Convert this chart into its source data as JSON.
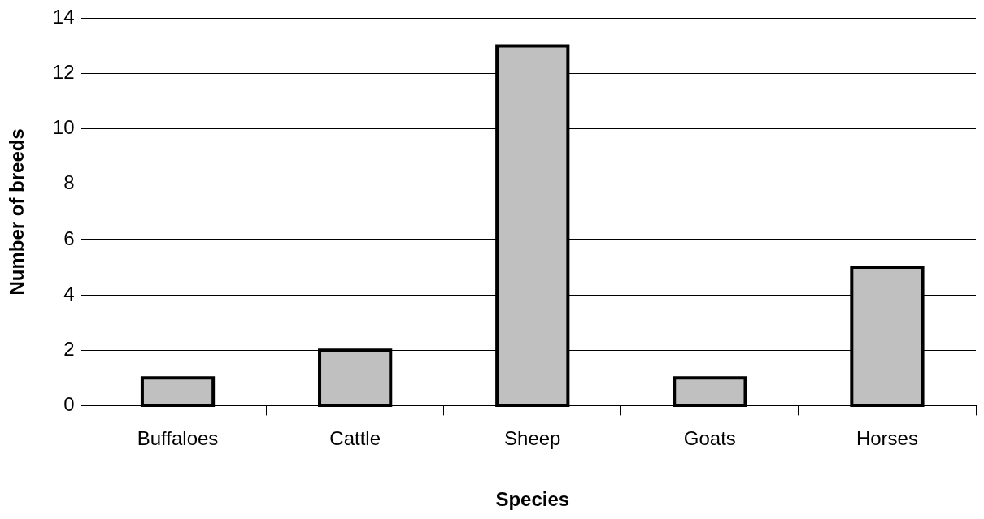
{
  "chart_data": {
    "type": "bar",
    "xlabel": "Species",
    "ylabel": "Number of breeds",
    "categories": [
      "Buffaloes",
      "Cattle",
      "Sheep",
      "Goats",
      "Horses"
    ],
    "values": [
      1,
      2,
      13,
      1,
      5
    ],
    "color": "#c0c0c0",
    "ylim": [
      0,
      14
    ],
    "yticks": [
      0,
      2,
      4,
      6,
      8,
      10,
      12,
      14
    ],
    "grid": "y",
    "legend": false
  }
}
